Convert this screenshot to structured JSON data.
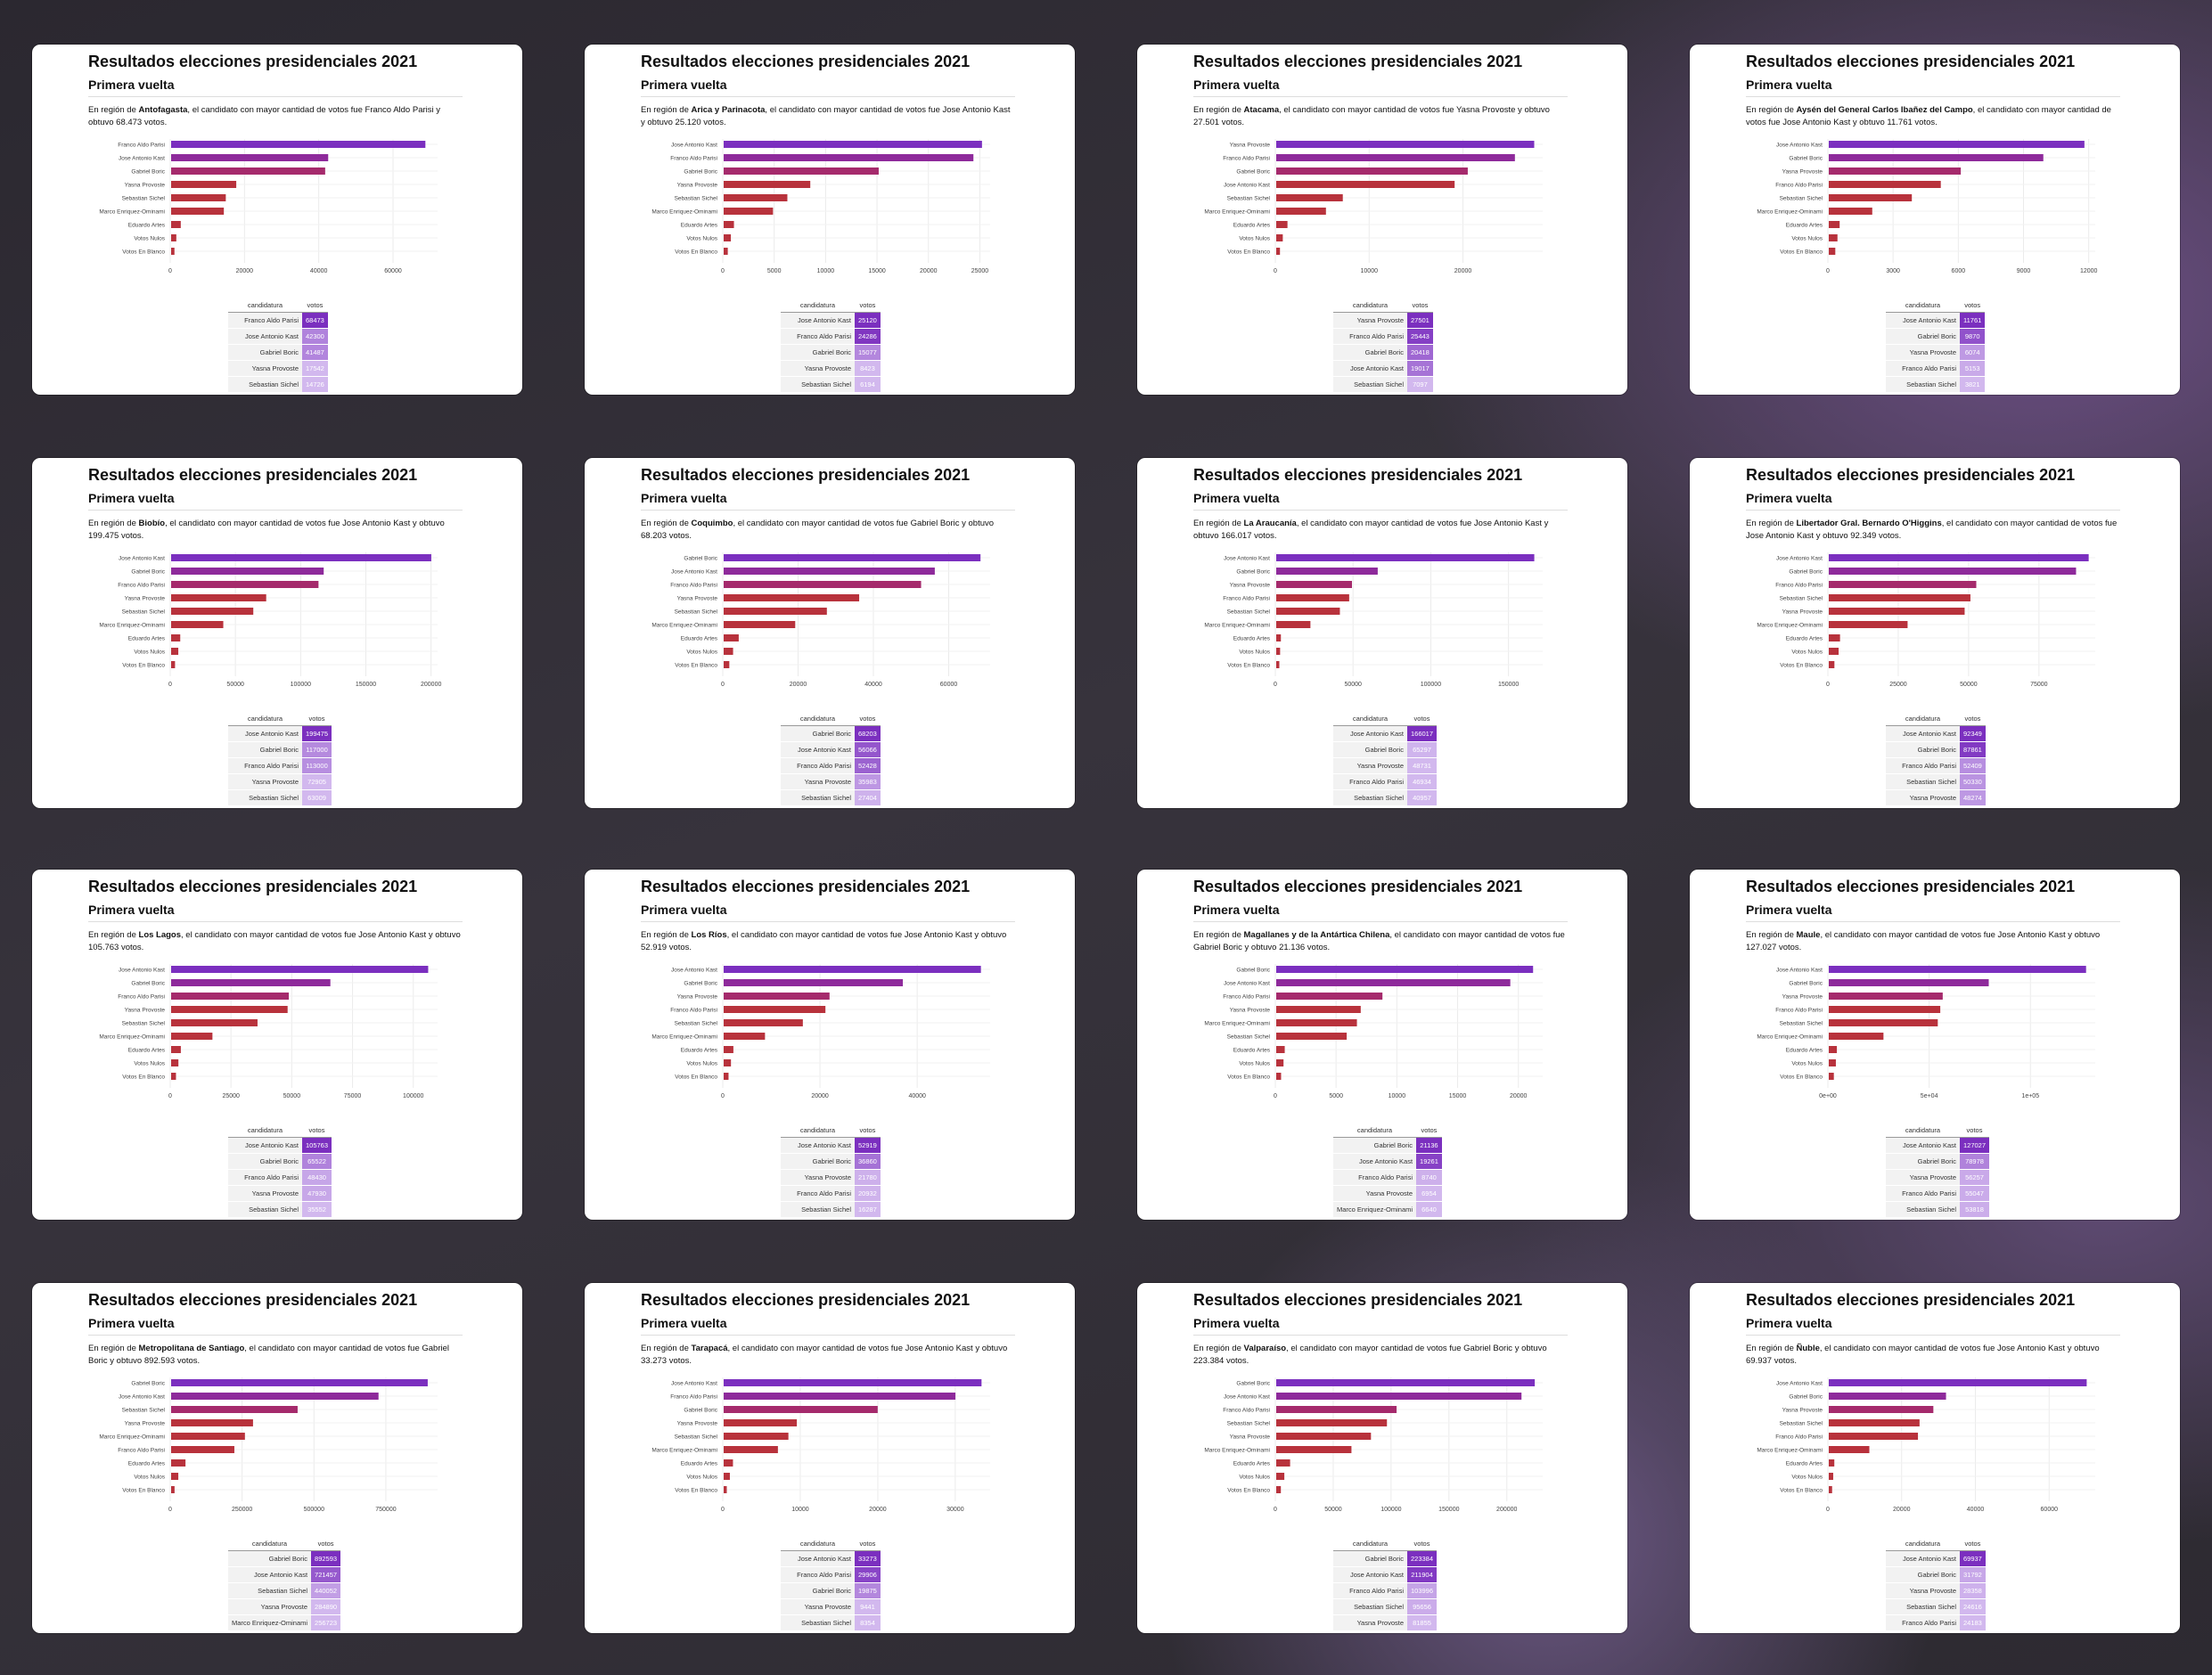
{
  "page": {
    "title": "Resultados elecciones presidenciales 2021",
    "subtitle": "Primera vuelta"
  },
  "table_headers": [
    "candidatura",
    "votos"
  ],
  "colors": {
    "top_bar": "#7b2fbf",
    "second_bar": "#8e2a9b",
    "mid_bar": "#a52a6c",
    "low_bar": "#b8323c",
    "table_top": "#7b2fbf",
    "table_low": "#d2b8ee"
  },
  "chart_data": [
    {
      "type": "bar",
      "region": "Antofagasta",
      "desc_pre": "En región de ",
      "desc_post": ", el candidato con mayor cantidad de votos fue Franco Aldo Parisi y obtuvo 68.473 votos.",
      "categories": [
        "Franco Aldo Parisi",
        "Jose Antonio Kast",
        "Gabriel Boric",
        "Yasna Provoste",
        "Sebastian Sichel",
        "Marco Enriquez-Ominami",
        "Eduardo Artes",
        "Votos Nulos",
        "Votos En Blanco"
      ],
      "values": [
        68473,
        42300,
        41487,
        17542,
        14726,
        14200,
        2600,
        1400,
        900
      ],
      "xticks": [
        "0",
        "20000",
        "40000",
        "60000"
      ],
      "xtick_vals": [
        0,
        20000,
        40000,
        60000
      ],
      "xmax": 72000,
      "table": [
        [
          "Franco Aldo Parisi",
          "68473"
        ],
        [
          "Jose Antonio Kast",
          "42300"
        ],
        [
          "Gabriel Boric",
          "41487"
        ],
        [
          "Yasna Provoste",
          "17542"
        ],
        [
          "Sebastian Sichel",
          "14726"
        ]
      ]
    },
    {
      "type": "bar",
      "region": "Arica y Parinacota",
      "desc_pre": "En región de ",
      "desc_post": ", el candidato con mayor cantidad de votos fue Jose Antonio Kast y obtuvo 25.120 votos.",
      "categories": [
        "Jose Antonio Kast",
        "Franco Aldo Parisi",
        "Gabriel Boric",
        "Yasna Provoste",
        "Sebastian Sichel",
        "Marco Enriquez-Ominami",
        "Eduardo Artes",
        "Votos Nulos",
        "Votos En Blanco"
      ],
      "values": [
        25120,
        24286,
        15077,
        8423,
        6194,
        4800,
        1000,
        700,
        400
      ],
      "xticks": [
        "0",
        "5000",
        "10000",
        "15000",
        "20000",
        "25000"
      ],
      "xtick_vals": [
        0,
        5000,
        10000,
        15000,
        20000,
        25000
      ],
      "xmax": 26000,
      "table": [
        [
          "Jose Antonio Kast",
          "25120"
        ],
        [
          "Franco Aldo Parisi",
          "24286"
        ],
        [
          "Gabriel Boric",
          "15077"
        ],
        [
          "Yasna Provoste",
          "8423"
        ],
        [
          "Sebastian Sichel",
          "6194"
        ]
      ]
    },
    {
      "type": "bar",
      "region": "Atacama",
      "desc_pre": "En región de ",
      "desc_post": ", el candidato con mayor cantidad de votos fue Yasna Provoste y obtuvo 27.501 votos.",
      "categories": [
        "Yasna Provoste",
        "Franco Aldo Parisi",
        "Gabriel Boric",
        "Jose Antonio Kast",
        "Sebastian Sichel",
        "Marco Enriquez-Ominami",
        "Eduardo Artes",
        "Votos Nulos",
        "Votos En Blanco"
      ],
      "values": [
        27501,
        25443,
        20418,
        19017,
        7097,
        5300,
        1200,
        700,
        400
      ],
      "xticks": [
        "0",
        "10000",
        "20000"
      ],
      "xtick_vals": [
        0,
        10000,
        20000
      ],
      "xmax": 28500,
      "table": [
        [
          "Yasna Provoste",
          "27501"
        ],
        [
          "Franco Aldo Parisi",
          "25443"
        ],
        [
          "Gabriel Boric",
          "20418"
        ],
        [
          "Jose Antonio Kast",
          "19017"
        ],
        [
          "Sebastian Sichel",
          "7097"
        ]
      ]
    },
    {
      "type": "bar",
      "region": "Aysén del General Carlos Ibañez del Campo",
      "desc_pre": "En región de ",
      "desc_post": ", el candidato con mayor cantidad de votos fue Jose Antonio Kast y obtuvo 11.761 votos.",
      "categories": [
        "Jose Antonio Kast",
        "Gabriel Boric",
        "Yasna Provoste",
        "Franco Aldo Parisi",
        "Sebastian Sichel",
        "Marco Enriquez-Ominami",
        "Eduardo Artes",
        "Votos Nulos",
        "Votos En Blanco"
      ],
      "values": [
        11761,
        9870,
        6074,
        5153,
        3821,
        2000,
        500,
        400,
        300
      ],
      "xticks": [
        "0",
        "3000",
        "6000",
        "9000",
        "12000"
      ],
      "xtick_vals": [
        0,
        3000,
        6000,
        9000,
        12000
      ],
      "xmax": 12300,
      "table": [
        [
          "Jose Antonio Kast",
          "11761"
        ],
        [
          "Gabriel Boric",
          "9870"
        ],
        [
          "Yasna Provoste",
          "6074"
        ],
        [
          "Franco Aldo Parisi",
          "5153"
        ],
        [
          "Sebastian Sichel",
          "3821"
        ]
      ]
    },
    {
      "type": "bar",
      "region": "Biobío",
      "desc_pre": "En región de ",
      "desc_post": ", el candidato con mayor cantidad de votos fue Jose Antonio Kast y obtuvo 199.475 votos.",
      "categories": [
        "Jose Antonio Kast",
        "Gabriel Boric",
        "Franco Aldo Parisi",
        "Yasna Provoste",
        "Sebastian Sichel",
        "Marco Enriquez-Ominami",
        "Eduardo Artes",
        "Votos Nulos",
        "Votos En Blanco"
      ],
      "values": [
        199475,
        117000,
        113000,
        72905,
        63009,
        40000,
        7000,
        5500,
        3000
      ],
      "xticks": [
        "0",
        "50000",
        "100000",
        "150000",
        "200000"
      ],
      "xtick_vals": [
        0,
        50000,
        100000,
        150000,
        200000
      ],
      "xmax": 205000,
      "table": [
        [
          "Jose Antonio Kast",
          "199475"
        ],
        [
          "Gabriel Boric",
          "117000"
        ],
        [
          "Franco Aldo Parisi",
          "113000"
        ],
        [
          "Yasna Provoste",
          "72905"
        ],
        [
          "Sebastian Sichel",
          "63009"
        ]
      ]
    },
    {
      "type": "bar",
      "region": "Coquimbo",
      "desc_pre": "En región de ",
      "desc_post": ", el candidato con mayor cantidad de votos fue Gabriel Boric y obtuvo 68.203 votos.",
      "categories": [
        "Gabriel Boric",
        "Jose Antonio Kast",
        "Franco Aldo Parisi",
        "Yasna Provoste",
        "Sebastian Sichel",
        "Marco Enriquez-Ominami",
        "Eduardo Artes",
        "Votos Nulos",
        "Votos En Blanco"
      ],
      "values": [
        68203,
        56066,
        52428,
        35983,
        27404,
        19000,
        4000,
        2500,
        1500
      ],
      "xticks": [
        "0",
        "20000",
        "40000",
        "60000"
      ],
      "xtick_vals": [
        0,
        20000,
        40000,
        60000
      ],
      "xmax": 71000,
      "table": [
        [
          "Gabriel Boric",
          "68203"
        ],
        [
          "Jose Antonio Kast",
          "56066"
        ],
        [
          "Franco Aldo Parisi",
          "52428"
        ],
        [
          "Yasna Provoste",
          "35983"
        ],
        [
          "Sebastian Sichel",
          "27404"
        ]
      ]
    },
    {
      "type": "bar",
      "region": "La Araucanía",
      "desc_pre": "En región de ",
      "desc_post": ", el candidato con mayor cantidad de votos fue Jose Antonio Kast y obtuvo 166.017 votos.",
      "categories": [
        "Jose Antonio Kast",
        "Gabriel Boric",
        "Yasna Provoste",
        "Franco Aldo Parisi",
        "Sebastian Sichel",
        "Marco Enriquez-Ominami",
        "Eduardo Artes",
        "Votos Nulos",
        "Votos En Blanco"
      ],
      "values": [
        166017,
        65297,
        48731,
        46934,
        40957,
        22000,
        3000,
        2500,
        2000
      ],
      "xticks": [
        "0",
        "50000",
        "100000",
        "150000"
      ],
      "xtick_vals": [
        0,
        50000,
        100000,
        150000
      ],
      "xmax": 172000,
      "table": [
        [
          "Jose Antonio Kast",
          "166017"
        ],
        [
          "Gabriel Boric",
          "65297"
        ],
        [
          "Yasna Provoste",
          "48731"
        ],
        [
          "Franco Aldo Parisi",
          "46934"
        ],
        [
          "Sebastian Sichel",
          "40957"
        ]
      ]
    },
    {
      "type": "bar",
      "region": "Libertador Gral. Bernardo O'Higgins",
      "desc_pre": "En región de ",
      "desc_post": ", el candidato con mayor cantidad de votos fue Jose Antonio Kast y obtuvo 92.349 votos.",
      "categories": [
        "Jose Antonio Kast",
        "Gabriel Boric",
        "Franco Aldo Parisi",
        "Sebastian Sichel",
        "Yasna Provoste",
        "Marco Enriquez-Ominami",
        "Eduardo Artes",
        "Votos Nulos",
        "Votos En Blanco"
      ],
      "values": [
        92349,
        87861,
        52409,
        50330,
        48274,
        28000,
        4000,
        3500,
        2000
      ],
      "xticks": [
        "0",
        "25000",
        "50000",
        "75000"
      ],
      "xtick_vals": [
        0,
        25000,
        50000,
        75000
      ],
      "xmax": 95000,
      "table": [
        [
          "Jose Antonio Kast",
          "92349"
        ],
        [
          "Gabriel Boric",
          "87861"
        ],
        [
          "Franco Aldo Parisi",
          "52409"
        ],
        [
          "Sebastian Sichel",
          "50330"
        ],
        [
          "Yasna Provoste",
          "48274"
        ]
      ]
    },
    {
      "type": "bar",
      "region": "Los Lagos",
      "desc_pre": "En región de ",
      "desc_post": ", el candidato con mayor cantidad de votos fue Jose Antonio Kast y obtuvo 105.763 votos.",
      "categories": [
        "Jose Antonio Kast",
        "Gabriel Boric",
        "Franco Aldo Parisi",
        "Yasna Provoste",
        "Sebastian Sichel",
        "Marco Enriquez-Ominami",
        "Eduardo Artes",
        "Votos Nulos",
        "Votos En Blanco"
      ],
      "values": [
        105763,
        65522,
        48430,
        47930,
        35552,
        17000,
        4000,
        3000,
        2000
      ],
      "xticks": [
        "0",
        "25000",
        "50000",
        "75000",
        "100000"
      ],
      "xtick_vals": [
        0,
        25000,
        50000,
        75000,
        100000
      ],
      "xmax": 110000,
      "table": [
        [
          "Jose Antonio Kast",
          "105763"
        ],
        [
          "Gabriel Boric",
          "65522"
        ],
        [
          "Franco Aldo Parisi",
          "48430"
        ],
        [
          "Yasna Provoste",
          "47930"
        ],
        [
          "Sebastian Sichel",
          "35552"
        ]
      ]
    },
    {
      "type": "bar",
      "region": "Los Ríos",
      "desc_pre": "En región de ",
      "desc_post": ", el candidato con mayor cantidad de votos fue Jose Antonio Kast y obtuvo 52.919 votos.",
      "categories": [
        "Jose Antonio Kast",
        "Gabriel Boric",
        "Yasna Provoste",
        "Franco Aldo Parisi",
        "Sebastian Sichel",
        "Marco Enriquez-Ominami",
        "Eduardo Artes",
        "Votos Nulos",
        "Votos En Blanco"
      ],
      "values": [
        52919,
        36860,
        21780,
        20932,
        16287,
        8500,
        2000,
        1500,
        1000
      ],
      "xticks": [
        "0",
        "20000",
        "40000"
      ],
      "xtick_vals": [
        0,
        20000,
        40000
      ],
      "xmax": 55000,
      "table": [
        [
          "Jose Antonio Kast",
          "52919"
        ],
        [
          "Gabriel Boric",
          "36860"
        ],
        [
          "Yasna Provoste",
          "21780"
        ],
        [
          "Franco Aldo Parisi",
          "20932"
        ],
        [
          "Sebastian Sichel",
          "16287"
        ]
      ]
    },
    {
      "type": "bar",
      "region": "Magallanes y de la Antártica Chilena",
      "desc_pre": "En región de ",
      "desc_post": ", el candidato con mayor cantidad de votos fue Gabriel Boric y obtuvo 21.136 votos.",
      "categories": [
        "Gabriel Boric",
        "Jose Antonio Kast",
        "Franco Aldo Parisi",
        "Yasna Provoste",
        "Marco Enriquez-Ominami",
        "Sebastian Sichel",
        "Eduardo Artes",
        "Votos Nulos",
        "Votos En Blanco"
      ],
      "values": [
        21136,
        19261,
        8740,
        6954,
        6640,
        5800,
        700,
        600,
        400
      ],
      "xticks": [
        "0",
        "5000",
        "10000",
        "15000",
        "20000"
      ],
      "xtick_vals": [
        0,
        5000,
        10000,
        15000,
        20000
      ],
      "xmax": 22000,
      "table": [
        [
          "Gabriel Boric",
          "21136"
        ],
        [
          "Jose Antonio Kast",
          "19261"
        ],
        [
          "Franco Aldo Parisi",
          "8740"
        ],
        [
          "Yasna Provoste",
          "6954"
        ],
        [
          "Marco Enriquez-Ominami",
          "6640"
        ]
      ]
    },
    {
      "type": "bar",
      "region": "Maule",
      "desc_pre": "En región de ",
      "desc_post": ", el candidato con mayor cantidad de votos fue Jose Antonio Kast y obtuvo 127.027 votos.",
      "categories": [
        "Jose Antonio Kast",
        "Gabriel Boric",
        "Yasna Provoste",
        "Franco Aldo Parisi",
        "Sebastian Sichel",
        "Marco Enriquez-Ominami",
        "Eduardo Artes",
        "Votos Nulos",
        "Votos En Blanco"
      ],
      "values": [
        127027,
        78978,
        56257,
        55047,
        53818,
        27000,
        4000,
        3500,
        2500
      ],
      "xticks": [
        "0e+00",
        "5e+04",
        "1e+05"
      ],
      "xtick_vals": [
        0,
        50000,
        100000
      ],
      "xmax": 132000,
      "table": [
        [
          "Jose Antonio Kast",
          "127027"
        ],
        [
          "Gabriel Boric",
          "78978"
        ],
        [
          "Yasna Provoste",
          "56257"
        ],
        [
          "Franco Aldo Parisi",
          "55047"
        ],
        [
          "Sebastian Sichel",
          "53818"
        ]
      ]
    },
    {
      "type": "bar",
      "region": "Metropolitana de Santiago",
      "desc_pre": "En región de ",
      "desc_post": ", el candidato con mayor cantidad de votos fue Gabriel Boric y obtuvo 892.593 votos.",
      "categories": [
        "Gabriel Boric",
        "Jose Antonio Kast",
        "Sebastian Sichel",
        "Yasna Provoste",
        "Marco Enriquez-Ominami",
        "Franco Aldo Parisi",
        "Eduardo Artes",
        "Votos Nulos",
        "Votos En Blanco"
      ],
      "values": [
        892593,
        721457,
        440052,
        284890,
        256723,
        220000,
        50000,
        25000,
        12000
      ],
      "xticks": [
        "0",
        "250000",
        "500000",
        "750000"
      ],
      "xtick_vals": [
        0,
        250000,
        500000,
        750000
      ],
      "xmax": 930000,
      "table": [
        [
          "Gabriel Boric",
          "892593"
        ],
        [
          "Jose Antonio Kast",
          "721457"
        ],
        [
          "Sebastian Sichel",
          "440052"
        ],
        [
          "Yasna Provoste",
          "284890"
        ],
        [
          "Marco Enriquez-Ominami",
          "256723"
        ]
      ]
    },
    {
      "type": "bar",
      "region": "Tarapacá",
      "desc_pre": "En región de ",
      "desc_post": ", el candidato con mayor cantidad de votos fue Jose Antonio Kast y obtuvo 33.273 votos.",
      "categories": [
        "Jose Antonio Kast",
        "Franco Aldo Parisi",
        "Gabriel Boric",
        "Yasna Provoste",
        "Sebastian Sichel",
        "Marco Enriquez-Ominami",
        "Eduardo Artes",
        "Votos Nulos",
        "Votos En Blanco"
      ],
      "values": [
        33273,
        29906,
        19875,
        9441,
        8354,
        7000,
        1200,
        800,
        400
      ],
      "xticks": [
        "0",
        "10000",
        "20000",
        "30000"
      ],
      "xtick_vals": [
        0,
        10000,
        20000,
        30000
      ],
      "xmax": 34500,
      "table": [
        [
          "Jose Antonio Kast",
          "33273"
        ],
        [
          "Franco Aldo Parisi",
          "29906"
        ],
        [
          "Gabriel Boric",
          "19875"
        ],
        [
          "Yasna Provoste",
          "9441"
        ],
        [
          "Sebastian Sichel",
          "8354"
        ]
      ]
    },
    {
      "type": "bar",
      "region": "Valparaíso",
      "desc_pre": "En región de ",
      "desc_post": ", el candidato con mayor cantidad de votos fue Gabriel Boric y obtuvo 223.384 votos.",
      "categories": [
        "Gabriel Boric",
        "Jose Antonio Kast",
        "Franco Aldo Parisi",
        "Sebastian Sichel",
        "Yasna Provoste",
        "Marco Enriquez-Ominami",
        "Eduardo Artes",
        "Votos Nulos",
        "Votos En Blanco"
      ],
      "values": [
        223384,
        211904,
        103996,
        95656,
        81855,
        65000,
        12000,
        7000,
        4000
      ],
      "xticks": [
        "0",
        "50000",
        "100000",
        "150000",
        "200000"
      ],
      "xtick_vals": [
        0,
        50000,
        100000,
        150000,
        200000
      ],
      "xmax": 231000,
      "table": [
        [
          "Gabriel Boric",
          "223384"
        ],
        [
          "Jose Antonio Kast",
          "211904"
        ],
        [
          "Franco Aldo Parisi",
          "103996"
        ],
        [
          "Sebastian Sichel",
          "95656"
        ],
        [
          "Yasna Provoste",
          "81855"
        ]
      ]
    },
    {
      "type": "bar",
      "region": "Ñuble",
      "desc_pre": "En región de ",
      "desc_post": ", el candidato con mayor cantidad de votos fue Jose Antonio Kast y obtuvo 69.937 votos.",
      "categories": [
        "Jose Antonio Kast",
        "Gabriel Boric",
        "Yasna Provoste",
        "Sebastian Sichel",
        "Franco Aldo Parisi",
        "Marco Enriquez-Ominami",
        "Eduardo Artes",
        "Votos Nulos",
        "Votos En Blanco"
      ],
      "values": [
        69937,
        31792,
        28358,
        24616,
        24183,
        11000,
        1500,
        1200,
        900
      ],
      "xticks": [
        "0",
        "20000",
        "40000",
        "60000"
      ],
      "xtick_vals": [
        0,
        20000,
        40000,
        60000
      ],
      "xmax": 72500,
      "table": [
        [
          "Jose Antonio Kast",
          "69937"
        ],
        [
          "Gabriel Boric",
          "31792"
        ],
        [
          "Yasna Provoste",
          "28358"
        ],
        [
          "Sebastian Sichel",
          "24616"
        ],
        [
          "Franco Aldo Parisi",
          "24183"
        ]
      ]
    }
  ]
}
